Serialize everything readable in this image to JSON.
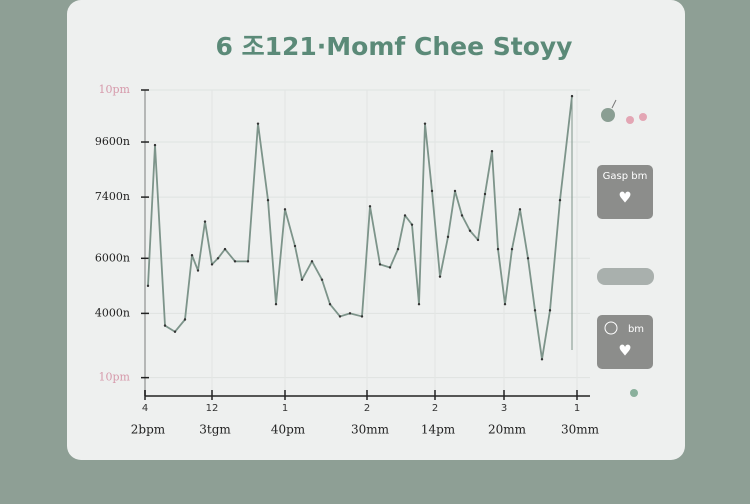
{
  "chart_data": {
    "type": "line",
    "title": "6 조121·Momf Chee Stoyy",
    "xlim": [
      0,
      445
    ],
    "xticks": [
      {
        "value": 0,
        "label": "4"
      },
      {
        "value": 67,
        "label": "12"
      },
      {
        "value": 140,
        "label": "1"
      },
      {
        "value": 222,
        "label": "2"
      },
      {
        "value": 290,
        "label": "2"
      },
      {
        "value": 359,
        "label": "3"
      },
      {
        "value": 432,
        "label": "1"
      }
    ],
    "xtick_sublabels": [
      "2bpm",
      "3tgm",
      "40pm",
      "30mm",
      "14pm",
      "20mm",
      "30mm"
    ],
    "ylim": [
      0,
      100
    ],
    "yticks": [
      {
        "value": 6,
        "label": "10pm"
      },
      {
        "value": 27,
        "label": "4000n"
      },
      {
        "value": 45,
        "label": "6000n"
      },
      {
        "value": 65,
        "label": "7400n"
      },
      {
        "value": 83,
        "label": "9600n"
      },
      {
        "value": 100,
        "label": "10pm"
      }
    ],
    "grid": true,
    "series": [
      {
        "color": "#7d948a",
        "x": [
          3,
          10,
          20,
          30,
          40,
          47,
          53,
          60,
          67,
          73,
          80,
          90,
          103,
          113,
          123,
          131,
          140,
          150,
          157,
          167,
          177,
          185,
          195,
          205,
          217,
          225,
          235,
          245,
          253,
          260,
          267,
          274,
          280,
          287,
          295,
          303,
          310,
          317,
          325,
          333,
          340,
          347,
          353,
          360,
          367,
          375,
          383,
          390,
          397,
          405,
          415,
          427
        ],
        "values": [
          36,
          82,
          23,
          21,
          25,
          46,
          41,
          57,
          43,
          45,
          48,
          44,
          44,
          89,
          64,
          30,
          61,
          49,
          38,
          44,
          38,
          30,
          26,
          27,
          26,
          62,
          43,
          42,
          48,
          59,
          56,
          30,
          89,
          67,
          39,
          52,
          67,
          59,
          54,
          51,
          66,
          80,
          48,
          30,
          48,
          61,
          45,
          28,
          12,
          28,
          64,
          98
        ]
      }
    ],
    "side_cards": [
      "Gasp bm",
      "bm"
    ]
  }
}
